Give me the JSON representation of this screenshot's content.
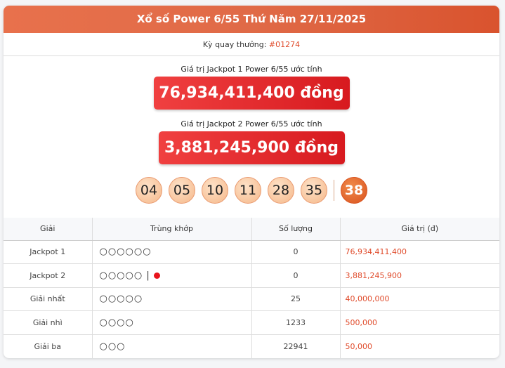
{
  "title": "Xổ số Power 6/55 Thứ Năm 27/11/2025",
  "draw": {
    "label": "Kỳ quay thưởng: ",
    "number": "#01274"
  },
  "jackpot1": {
    "label": "Giá trị Jackpot 1 Power 6/55 ước tính",
    "value": "76,934,411,400 đồng"
  },
  "jackpot2": {
    "label": "Giá trị Jackpot 2 Power 6/55 ước tính",
    "value": "3,881,245,900 đồng"
  },
  "balls": [
    "04",
    "05",
    "10",
    "11",
    "28",
    "35"
  ],
  "power_ball": "38",
  "colors": {
    "header": "#e06a47",
    "accent": "#e04b2b",
    "jackpot_box": "#d71a1f"
  },
  "table": {
    "headers": [
      "Giải",
      "Trùng khớp",
      "Số lượng",
      "Giá trị (đ)"
    ],
    "rows": [
      {
        "prize": "Jackpot 1",
        "match": "○○○○○○",
        "power": false,
        "count": "0",
        "value": "76,934,411,400"
      },
      {
        "prize": "Jackpot 2",
        "match": "○○○○○ | ",
        "power": true,
        "count": "0",
        "value": "3,881,245,900"
      },
      {
        "prize": "Giải nhất",
        "match": "○○○○○",
        "power": false,
        "count": "25",
        "value": "40,000,000"
      },
      {
        "prize": "Giải nhì",
        "match": "○○○○",
        "power": false,
        "count": "1233",
        "value": "500,000"
      },
      {
        "prize": "Giải ba",
        "match": "○○○",
        "power": false,
        "count": "22941",
        "value": "50,000"
      }
    ]
  }
}
